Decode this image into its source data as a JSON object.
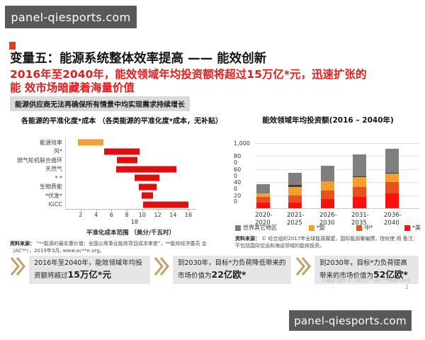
{
  "watermark_top": "panel-qiesports.com",
  "watermark_bottom": "panel-qiesports.com",
  "header": {
    "title": "变量五：能源系统整体效率提高 —— 能效创新",
    "subtitle_line1": "2016年至2040年，能效领域年均投资额将超过15万亿*元，迅速扩张的",
    "subtitle_line2": "能 效市场暗藏着海量价值",
    "note": "能源供应商无法再确保所有情景中均实现需求持续增长"
  },
  "chart_data": [
    {
      "type": "bar",
      "subtype": "horizontal-range",
      "title": "各能源的平准化度*成本 （各类能源的平准化度*成本，无补贴）",
      "categories": [
        "能源效率",
        "风*",
        "燃气轮机联合循环",
        "天然气",
        "* *",
        "生物质能",
        "*伏发*",
        "IGCC"
      ],
      "ranges": [
        [
          1.6,
          4.9
        ],
        [
          5.0,
          9.6
        ],
        [
          6.6,
          9.3
        ],
        [
          6.5,
          14.3
        ],
        [
          8.9,
          12.1
        ],
        [
          9.5,
          11.8
        ],
        [
          9.8,
          11.3
        ],
        [
          10.0,
          15.9
        ]
      ],
      "bar_colors": [
        "#f2a138",
        "#e00f0f",
        "#e00f0f",
        "#e00f0f",
        "#e00f0f",
        "#e00f0f",
        "#e00f0f",
        "#e00f0f"
      ],
      "xlabel": "平准化成本范围 （美分/千瓦时）",
      "xticks": [
        2,
        4,
        6,
        8,
        10,
        12,
        14,
        16
      ],
      "stray_tick_label": "18",
      "stray_tick_value": 9,
      "xlim": [
        0,
        17
      ],
      "grid": false,
      "legend_position": "none",
      "source_label": "资料来源：",
      "source_text": "“**能源的最实惠价值：全国公用事业能效项目成本审查”，**能效经济委员 会（AC**），2019年3月, www.ac**e.org。"
    },
    {
      "type": "bar",
      "subtype": "stacked-vertical",
      "title": "能效领域年均投资额(2016 – 2040年)",
      "categories": [
        "2020-2020",
        "2021-2025",
        "2026-2030",
        "2031-2035",
        "2036-2040"
      ],
      "series": [
        {
          "name": "*美",
          "color": "#fe1010",
          "values": [
            90,
            85,
            140,
            175,
            230
          ]
        },
        {
          "name": "中*",
          "color": "#e8501e",
          "values": [
            80,
            110,
            135,
            155,
            170
          ]
        },
        {
          "name": "*盟",
          "color": "#f49d33",
          "values": [
            60,
            135,
            140,
            145,
            130
          ]
        },
        {
          "name": "",
          "color": "#4a3a32",
          "values": [
            0,
            25,
            0,
            20,
            15
          ]
        },
        {
          "name": "世界其它地区",
          "color": "#7f7f7f",
          "values": [
            140,
            185,
            235,
            330,
            370
          ]
        }
      ],
      "totals": [
        370,
        540,
        650,
        825,
        915
      ],
      "ylim": [
        0,
        1000
      ],
      "yticks": [
        0,
        200,
        400,
        600,
        800,
        1000
      ],
      "ytick_labels": [
        {
          "text": "1,000",
          "value": 1000
        },
        {
          "text": "80\n0",
          "value": 800
        },
        {
          "text": "60\n0",
          "value": 600
        },
        {
          "text": "40\n0",
          "value": 400
        },
        {
          "text": "20\n0",
          "value": 200
        }
      ],
      "legend": [
        {
          "label": "世界其它地区",
          "color": "#7f7f7f"
        },
        {
          "label": "*盟",
          "color": "#f49d33"
        },
        {
          "label": "中*",
          "color": "#e8501e"
        },
        {
          "label": "*美",
          "color": "#fe1010"
        }
      ],
      "legend_position": "bottom",
      "grid": true,
      "source_label": "资料来源：",
      "source_text": "© 经合组织2017年全球能源展望，国际能源署编撰，授权使 用 备注：不包括国际空运和海运领域的能效投资。"
    }
  ],
  "callouts": [
    {
      "text": "2016年至2040年，能效领域年均投资额将超过",
      "value": "15万亿*元"
    },
    {
      "text": "到2030年，目标*力负荷降低带来的市场价值为",
      "value": "22亿欧*"
    },
    {
      "text": "到2030年，目标*力负荷提高带来的市场价值为",
      "value": "52亿欧*"
    }
  ],
  "footer": {
    "copyright": "Copyright © 2021 ** All **reserved.",
    "stray_dot": ".",
    "page": "2"
  },
  "colors": {
    "subtitle_red": "#e02020",
    "title_tick": "#e04020",
    "note_bg": "#dadada",
    "callout_bg": "#e6e6e6",
    "chevron": "#c2a063",
    "watermark_bg": "#59595b"
  }
}
